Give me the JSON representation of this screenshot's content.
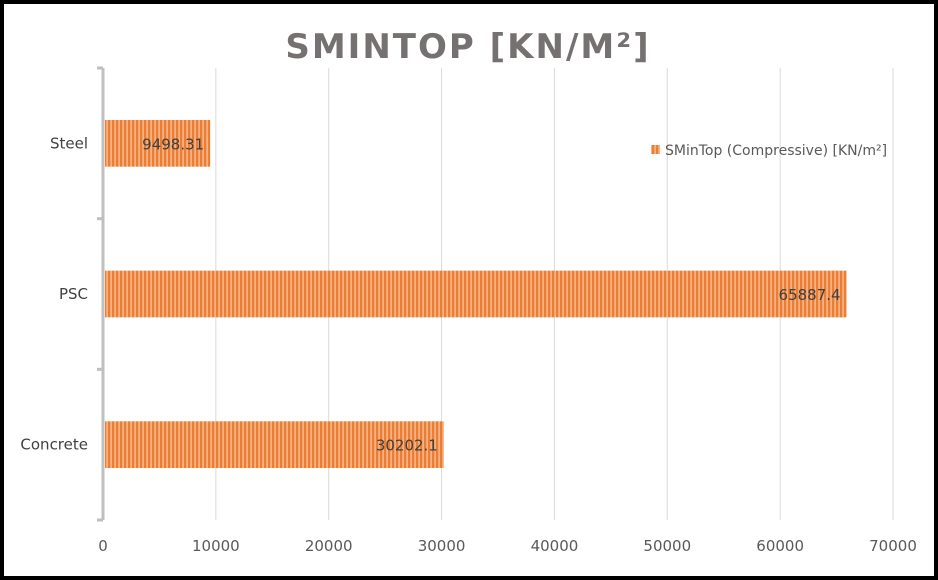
{
  "chart_data": {
    "type": "bar",
    "orientation": "horizontal",
    "title": "SMINTOP [KN/M²]",
    "categories": [
      "Concrete",
      "PSC",
      "Steel"
    ],
    "series": [
      {
        "name": "SMinTop (Compressive) [KN/m²]",
        "values": [
          30202.1,
          65887.4,
          9498.31
        ],
        "labels": [
          "30202.1",
          "65887.4",
          "9498.31"
        ],
        "color": "#ED7D31"
      }
    ],
    "xlim": [
      0,
      70000
    ],
    "xticks": [
      0,
      10000,
      20000,
      30000,
      40000,
      50000,
      60000,
      70000
    ],
    "grid": true,
    "legend_position": "top-right"
  }
}
